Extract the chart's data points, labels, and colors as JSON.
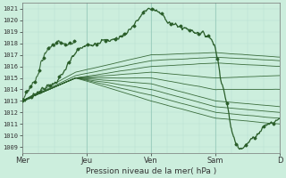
{
  "title": "",
  "xlabel": "Pression niveau de la mer( hPa )",
  "ylabel": "",
  "bg_color": "#cceedd",
  "grid_color_major": "#99ccbb",
  "grid_color_minor": "#b8ddd0",
  "line_color": "#2a5e2a",
  "ylim": [
    1008.5,
    1021.5
  ],
  "xlim": [
    0,
    96
  ],
  "yticks": [
    1009,
    1010,
    1011,
    1012,
    1013,
    1014,
    1015,
    1016,
    1017,
    1018,
    1019,
    1020,
    1021
  ],
  "xtick_labels": [
    "Mer",
    "Jeu",
    "Ven",
    "Sam",
    "D"
  ],
  "xtick_positions": [
    0,
    24,
    48,
    72,
    96
  ]
}
